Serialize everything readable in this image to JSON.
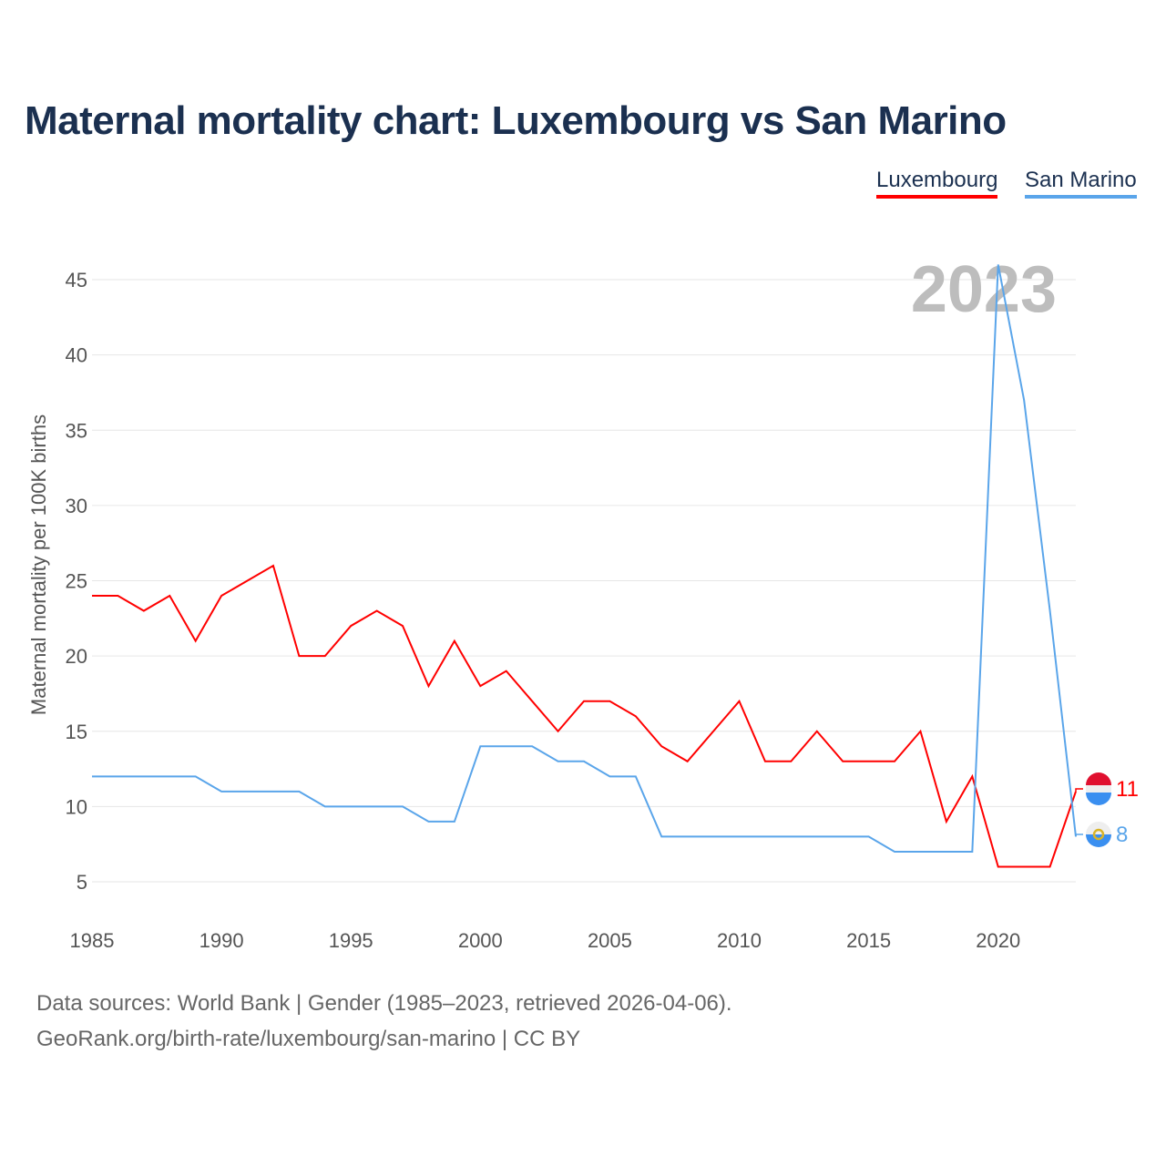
{
  "title": "Maternal mortality chart: Luxembourg vs San Marino",
  "legend": [
    "Luxembourg",
    "San Marino"
  ],
  "source_line1": "Data sources: World Bank | Gender (1985–2023, retrieved 2026-04-06).",
  "source_line2": "GeoRank.org/birth-rate/luxembourg/san-marino | CC BY",
  "chart_data": {
    "type": "line",
    "title": "Maternal mortality chart: Luxembourg vs San Marino",
    "xlabel": "",
    "ylabel": "Maternal mortality per 100K births",
    "year_label": "2023",
    "x": [
      1985,
      1986,
      1987,
      1988,
      1989,
      1990,
      1991,
      1992,
      1993,
      1994,
      1995,
      1996,
      1997,
      1998,
      1999,
      2000,
      2001,
      2002,
      2003,
      2004,
      2005,
      2006,
      2007,
      2008,
      2009,
      2010,
      2011,
      2012,
      2013,
      2014,
      2015,
      2016,
      2017,
      2018,
      2019,
      2020,
      2021,
      2022,
      2023
    ],
    "xticks": [
      1985,
      1990,
      1995,
      2000,
      2005,
      2010,
      2015,
      2020
    ],
    "yticks": [
      5,
      10,
      15,
      20,
      25,
      30,
      35,
      40,
      45
    ],
    "xlim": [
      1985,
      2023
    ],
    "ylim": [
      5,
      45
    ],
    "series": [
      {
        "name": "Luxembourg",
        "color": "#ff0000",
        "end_label": "11",
        "values": [
          24,
          24,
          23,
          24,
          21,
          24,
          25,
          26,
          20,
          20,
          22,
          23,
          22,
          18,
          21,
          18,
          19,
          17,
          15,
          17,
          17,
          16,
          14,
          13,
          15,
          17,
          13,
          13,
          15,
          13,
          13,
          13,
          15,
          9,
          12,
          6,
          6,
          6,
          11
        ]
      },
      {
        "name": "San Marino",
        "color": "#5aa5ea",
        "end_label": "8",
        "values": [
          12,
          12,
          12,
          12,
          12,
          11,
          11,
          11,
          11,
          10,
          10,
          10,
          10,
          9,
          9,
          14,
          14,
          14,
          13,
          13,
          12,
          12,
          8,
          8,
          8,
          8,
          8,
          8,
          8,
          8,
          8,
          7,
          7,
          7,
          7,
          46,
          37,
          23,
          8
        ]
      }
    ]
  }
}
